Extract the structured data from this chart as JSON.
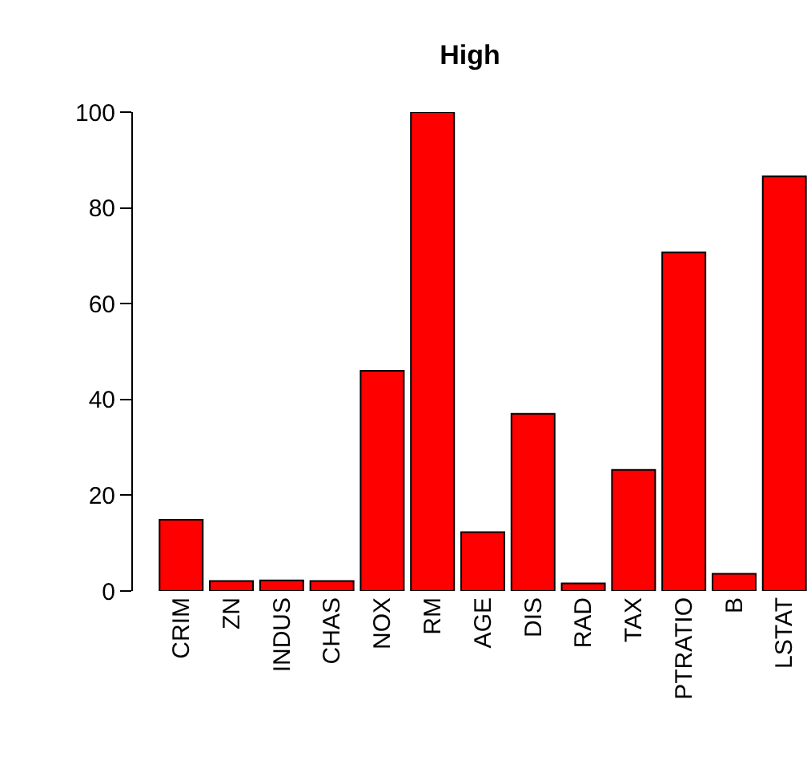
{
  "chart_data": {
    "type": "bar",
    "title": "High",
    "categories": [
      "CRIM",
      "ZN",
      "INDUS",
      "CHAS",
      "NOX",
      "RM",
      "AGE",
      "DIS",
      "RAD",
      "TAX",
      "PTRATIO",
      "B",
      "LSTAT"
    ],
    "values": [
      14.9,
      2.1,
      2.2,
      2.1,
      46.0,
      100,
      12.3,
      37.0,
      1.6,
      25.3,
      70.7,
      3.6,
      86.6
    ],
    "color": "#ff0000",
    "ylim": [
      0,
      100
    ],
    "yticks": [
      0,
      20,
      40,
      60,
      80,
      100
    ]
  }
}
